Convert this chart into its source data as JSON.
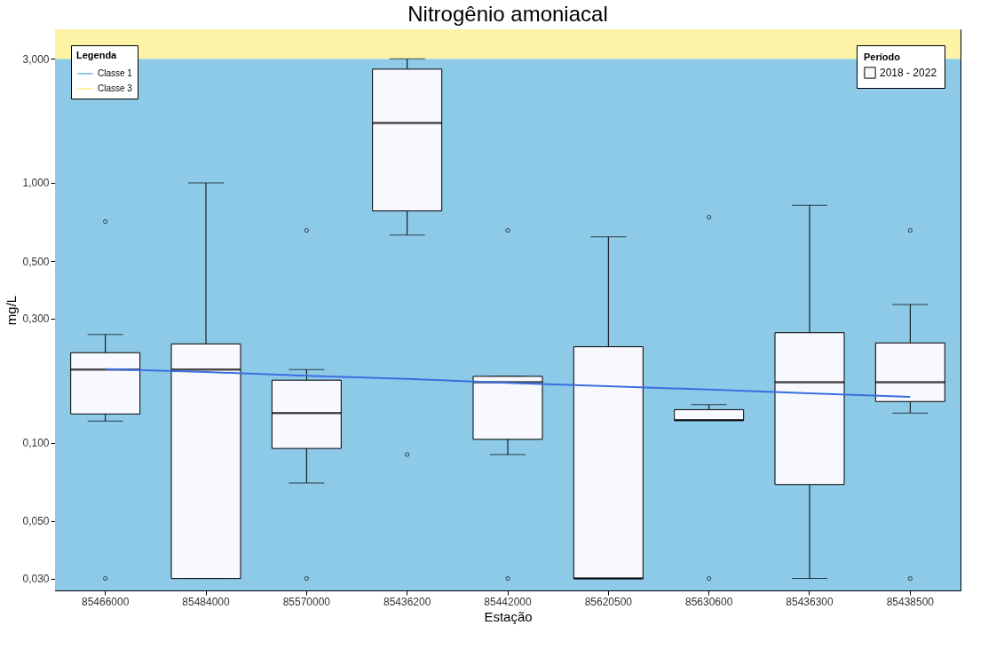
{
  "chart_data": {
    "type": "box",
    "title": "Nitrogênio amoniacal",
    "xlabel": "Estação",
    "ylabel": "mg/L",
    "legend_title": "Legenda",
    "legend": "top left",
    "log": true,
    "grid": false,
    "categories": [
      "85466000",
      "85484000",
      "85570000",
      "85436200",
      "85442000",
      "85620500",
      "85630600",
      "85436300",
      "85438500"
    ],
    "series": [
      {
        "name": "2018 - 2022",
        "color": "#f8f8ff",
        "boxes": [
          {
            "low": 0.121,
            "q1": 0.129,
            "median": 0.191,
            "q3": 0.222,
            "high": 0.261,
            "outliers": [
              0.71,
              0.03
            ]
          },
          {
            "low": 0.03,
            "q1": 0.03,
            "median": 0.191,
            "q3": 0.24,
            "high": 1.0
          },
          {
            "low": 0.07,
            "q1": 0.095,
            "median": 0.13,
            "q3": 0.174,
            "high": 0.191,
            "outliers": [
              0.656,
              0.03
            ]
          },
          {
            "low": 0.63,
            "q1": 0.78,
            "median": 1.7,
            "q3": 2.74,
            "high": 3.0,
            "outliers": [
              0.09
            ]
          },
          {
            "low": 0.09,
            "q1": 0.103,
            "median": 0.171,
            "q3": 0.18,
            "high": 0.18,
            "outliers": [
              0.656,
              0.03
            ]
          },
          {
            "low": 0.03,
            "q1": 0.03,
            "median": 0.03,
            "q3": 0.234,
            "high": 0.62
          },
          {
            "low": 0.122,
            "q1": 0.122,
            "median": 0.122,
            "q3": 0.134,
            "high": 0.14,
            "outliers": [
              0.738,
              0.03
            ]
          },
          {
            "low": 0.03,
            "q1": 0.069,
            "median": 0.171,
            "q3": 0.265,
            "high": 0.82
          },
          {
            "low": 0.13,
            "q1": 0.144,
            "median": 0.171,
            "q3": 0.242,
            "high": 0.34,
            "outliers": [
              0.656,
              0.03
            ]
          }
        ]
      },
      {
        "type": "line",
        "color": "#3a6fe0",
        "x": [
          "85466000",
          "85484000",
          "85570000",
          "85436200",
          "85442000",
          "85620500",
          "85630600",
          "85436300",
          "85438500"
        ],
        "values": [
          0.192,
          0.187,
          0.181,
          0.176,
          0.17,
          0.165,
          0.16,
          0.155,
          0.15
        ]
      }
    ],
    "ylim": [
      0.027,
      3.9
    ],
    "yticks": [
      {
        "value": 0.03,
        "label": "0,030"
      },
      {
        "value": 0.05,
        "label": "0,050"
      },
      {
        "value": 0.1,
        "label": "0,100"
      },
      {
        "value": 0.3,
        "label": "0,300"
      },
      {
        "value": 0.5,
        "label": "0,500"
      },
      {
        "value": 1,
        "label": "1,000"
      },
      {
        "value": 3,
        "label": "3,000"
      }
    ],
    "bands": [
      {
        "axis": "y",
        "from": 0.027,
        "to": 3,
        "label": "Classe 1",
        "color": "#8dcae8"
      },
      {
        "axis": "y",
        "from": 3,
        "to": 3.9,
        "label": "Classe 3",
        "color": "#fcf3a6"
      }
    ],
    "annotations": [
      "Período"
    ]
  }
}
